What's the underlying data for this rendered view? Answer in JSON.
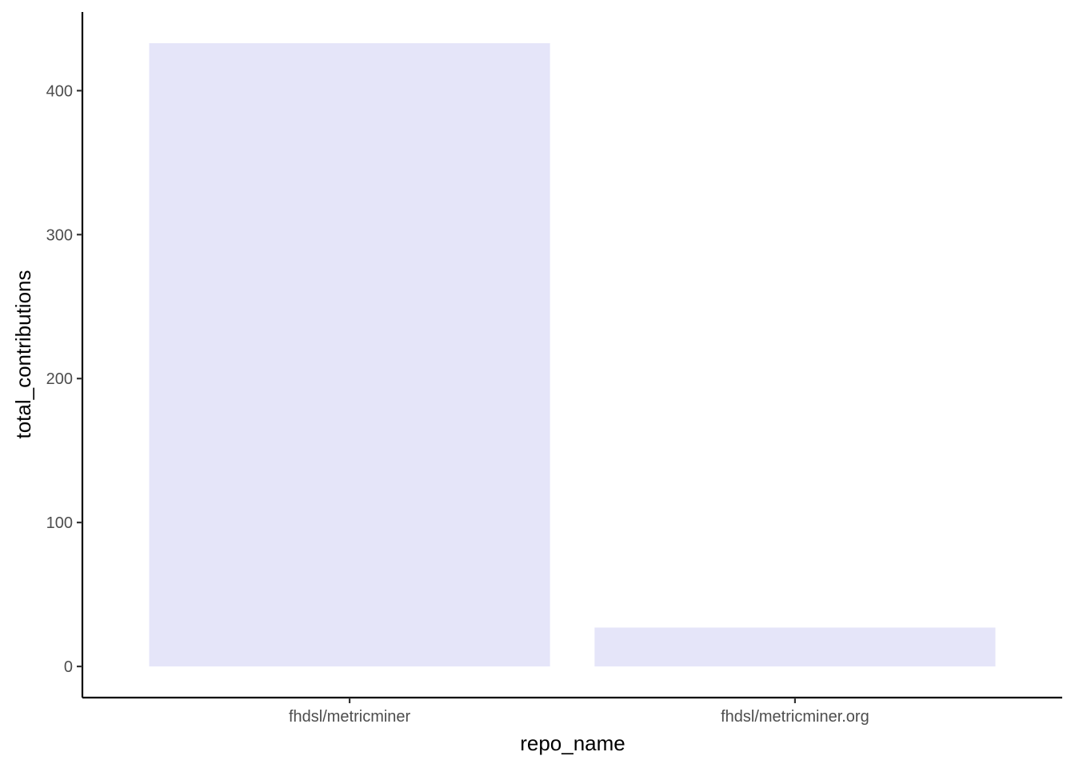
{
  "chart_data": {
    "type": "bar",
    "title": "",
    "xlabel": "repo_name",
    "ylabel": "total_contributions",
    "categories": [
      "fhdsl/metricminer",
      "fhdsl/metricminer.org"
    ],
    "values": [
      433,
      27
    ],
    "ylim": [
      -21.65,
      454.65
    ],
    "yticks": [
      0,
      100,
      200,
      300,
      400
    ],
    "grid": false,
    "legend": "none",
    "colors": {
      "bar_fill": "#e5e5f9",
      "axis_line": "#000000",
      "tick_label": "#4d4d4d",
      "axis_title": "#000000"
    }
  }
}
